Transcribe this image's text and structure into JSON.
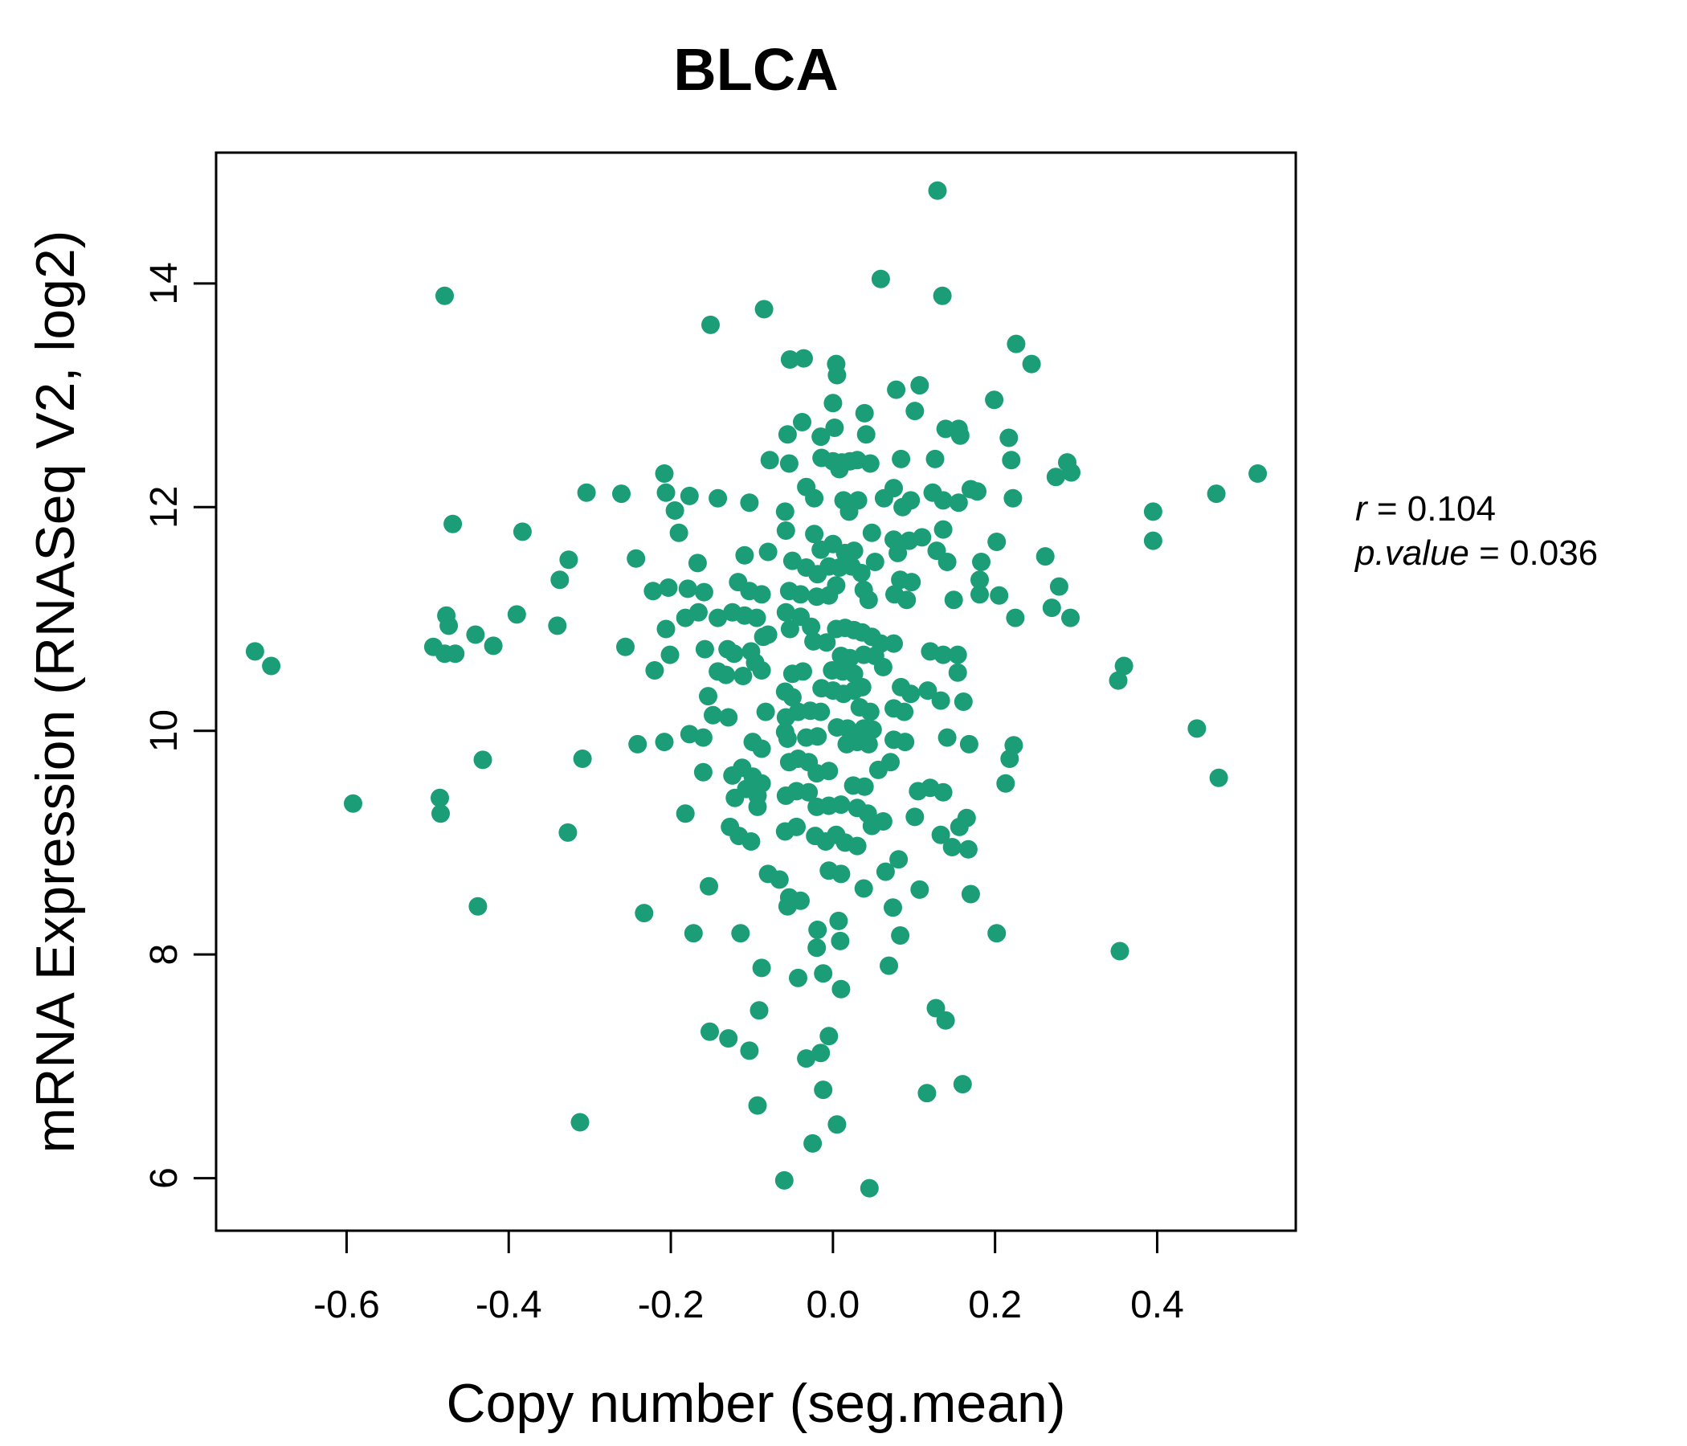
{
  "title": "BLCA",
  "title_color": "#1B9E77",
  "point_color": "#1B9E77",
  "axes": {
    "xlabel": "Copy number (seg.mean)",
    "ylabel": "mRNA Expression (RNASeq V2, log2)",
    "x_tick_labels": [
      "-0.6",
      "-0.4",
      "-0.2",
      "0.0",
      "0.2",
      "0.4"
    ],
    "y_tick_labels": [
      "6",
      "8",
      "10",
      "12",
      "14"
    ]
  },
  "annotation": {
    "r_var": "r",
    "r_eq": " = 0.104",
    "p_var": "p.value",
    "p_eq": " = 0.036"
  },
  "chart_data": {
    "type": "scatter",
    "title": "BLCA",
    "xlabel": "Copy number (seg.mean)",
    "ylabel": "mRNA Expression (RNASeq V2, log2)",
    "r": 0.104,
    "p_value": 0.036,
    "xlim": [
      -0.761,
      0.571
    ],
    "ylim": [
      5.53,
      15.17
    ],
    "x_ticks": [
      -0.6,
      -0.4,
      -0.2,
      0.0,
      0.2,
      0.4
    ],
    "y_ticks": [
      6,
      8,
      10,
      12,
      14
    ],
    "grid": false,
    "legend": "none",
    "points": [
      [
        -0.479,
        13.89
      ],
      [
        -0.469,
        11.85
      ],
      [
        -0.304,
        12.13
      ],
      [
        0.129,
        14.83
      ],
      [
        0.059,
        14.04
      ],
      [
        0.135,
        13.89
      ],
      [
        -0.085,
        13.77
      ],
      [
        -0.151,
        13.63
      ],
      [
        -0.053,
        13.32
      ],
      [
        -0.036,
        13.33
      ],
      [
        0.004,
        13.28
      ],
      [
        0.005,
        13.18
      ],
      [
        0.078,
        13.05
      ],
      [
        0.107,
        13.09
      ],
      [
        0.0,
        12.93
      ],
      [
        -0.038,
        12.76
      ],
      [
        -0.056,
        12.65
      ],
      [
        -0.015,
        12.63
      ],
      [
        0.002,
        12.71
      ],
      [
        0.039,
        12.84
      ],
      [
        0.041,
        12.65
      ],
      [
        0.101,
        12.86
      ],
      [
        0.139,
        12.7
      ],
      [
        -0.078,
        12.42
      ],
      [
        -0.054,
        12.39
      ],
      [
        -0.014,
        12.44
      ],
      [
        0.0,
        12.41
      ],
      [
        0.011,
        12.4
      ],
      [
        0.021,
        12.41
      ],
      [
        0.03,
        12.42
      ],
      [
        0.008,
        12.34
      ],
      [
        0.046,
        12.39
      ],
      [
        0.084,
        12.43
      ],
      [
        0.126,
        12.43
      ],
      [
        -0.208,
        12.3
      ],
      [
        -0.261,
        12.12
      ],
      [
        -0.206,
        12.13
      ],
      [
        -0.195,
        11.97
      ],
      [
        -0.177,
        12.1
      ],
      [
        -0.142,
        12.08
      ],
      [
        -0.103,
        12.04
      ],
      [
        -0.059,
        11.96
      ],
      [
        -0.033,
        12.18
      ],
      [
        -0.023,
        12.08
      ],
      [
        0.013,
        12.06
      ],
      [
        0.02,
        11.96
      ],
      [
        0.031,
        12.06
      ],
      [
        0.063,
        12.08
      ],
      [
        0.075,
        12.17
      ],
      [
        0.086,
        12.0
      ],
      [
        0.096,
        12.06
      ],
      [
        0.123,
        12.13
      ],
      [
        0.136,
        12.06
      ],
      [
        0.226,
        13.46
      ],
      [
        0.245,
        13.28
      ],
      [
        0.199,
        12.96
      ],
      [
        0.155,
        12.7
      ],
      [
        0.157,
        12.64
      ],
      [
        0.217,
        12.62
      ],
      [
        0.22,
        12.42
      ],
      [
        0.289,
        12.4
      ],
      [
        0.275,
        12.27
      ],
      [
        0.294,
        12.31
      ],
      [
        0.17,
        12.16
      ],
      [
        0.178,
        12.14
      ],
      [
        0.222,
        12.08
      ],
      [
        0.155,
        12.04
      ],
      [
        0.395,
        11.96
      ],
      [
        0.473,
        12.12
      ],
      [
        0.524,
        12.3
      ],
      [
        -0.383,
        11.78
      ],
      [
        -0.326,
        11.53
      ],
      [
        -0.337,
        11.35
      ],
      [
        -0.477,
        11.03
      ],
      [
        -0.474,
        10.94
      ],
      [
        -0.441,
        10.86
      ],
      [
        -0.419,
        10.76
      ],
      [
        -0.39,
        11.04
      ],
      [
        -0.34,
        10.94
      ],
      [
        -0.493,
        10.75
      ],
      [
        -0.479,
        10.69
      ],
      [
        -0.466,
        10.69
      ],
      [
        -0.713,
        10.71
      ],
      [
        -0.693,
        10.58
      ],
      [
        -0.432,
        9.74
      ],
      [
        -0.309,
        9.75
      ],
      [
        -0.592,
        9.35
      ],
      [
        -0.485,
        9.4
      ],
      [
        -0.484,
        9.26
      ],
      [
        -0.327,
        9.09
      ],
      [
        -0.438,
        8.43
      ],
      [
        -0.19,
        11.77
      ],
      [
        0.048,
        11.77
      ],
      [
        -0.058,
        11.79
      ],
      [
        -0.023,
        11.76
      ],
      [
        0.075,
        11.71
      ],
      [
        0.11,
        11.73
      ],
      [
        0.136,
        11.8
      ],
      [
        0.128,
        11.61
      ],
      [
        0.08,
        11.59
      ],
      [
        0.094,
        11.7
      ],
      [
        -0.015,
        11.62
      ],
      [
        0.0,
        11.67
      ],
      [
        0.015,
        11.59
      ],
      [
        0.026,
        11.61
      ],
      [
        -0.109,
        11.57
      ],
      [
        -0.08,
        11.6
      ],
      [
        -0.243,
        11.54
      ],
      [
        -0.167,
        11.5
      ],
      [
        -0.05,
        11.52
      ],
      [
        -0.033,
        11.46
      ],
      [
        -0.019,
        11.4
      ],
      [
        -0.005,
        11.47
      ],
      [
        0.008,
        11.46
      ],
      [
        0.023,
        11.47
      ],
      [
        0.035,
        11.41
      ],
      [
        0.052,
        11.51
      ],
      [
        0.083,
        11.35
      ],
      [
        0.097,
        11.33
      ],
      [
        0.141,
        11.51
      ],
      [
        -0.222,
        11.25
      ],
      [
        -0.203,
        11.28
      ],
      [
        -0.179,
        11.27
      ],
      [
        -0.159,
        11.24
      ],
      [
        -0.117,
        11.33
      ],
      [
        -0.103,
        11.25
      ],
      [
        -0.088,
        11.22
      ],
      [
        -0.054,
        11.25
      ],
      [
        -0.04,
        11.22
      ],
      [
        -0.02,
        11.2
      ],
      [
        -0.005,
        11.21
      ],
      [
        0.004,
        11.3
      ],
      [
        0.038,
        11.26
      ],
      [
        0.044,
        11.17
      ],
      [
        0.076,
        11.22
      ],
      [
        0.091,
        11.17
      ],
      [
        0.149,
        11.17
      ],
      [
        -0.182,
        11.01
      ],
      [
        -0.166,
        11.06
      ],
      [
        -0.142,
        11.01
      ],
      [
        -0.124,
        11.06
      ],
      [
        -0.109,
        11.03
      ],
      [
        -0.094,
        11.01
      ],
      [
        -0.206,
        10.91
      ],
      [
        -0.201,
        10.68
      ],
      [
        -0.256,
        10.75
      ],
      [
        -0.22,
        10.54
      ],
      [
        -0.158,
        10.73
      ],
      [
        -0.13,
        10.73
      ],
      [
        -0.122,
        10.69
      ],
      [
        -0.101,
        10.71
      ],
      [
        -0.086,
        10.84
      ],
      [
        -0.08,
        10.86
      ],
      [
        -0.058,
        11.06
      ],
      [
        -0.053,
        10.91
      ],
      [
        -0.04,
        11.02
      ],
      [
        -0.027,
        10.93
      ],
      [
        -0.024,
        10.8
      ],
      [
        -0.008,
        10.79
      ],
      [
        0.004,
        10.91
      ],
      [
        0.015,
        10.92
      ],
      [
        0.026,
        10.9
      ],
      [
        0.036,
        10.88
      ],
      [
        0.048,
        10.84
      ],
      [
        0.059,
        10.78
      ],
      [
        0.075,
        10.78
      ],
      [
        0.038,
        10.68
      ],
      [
        0.052,
        10.67
      ],
      [
        0.01,
        10.67
      ],
      [
        0.021,
        10.65
      ],
      [
        -0.001,
        10.54
      ],
      [
        0.012,
        10.53
      ],
      [
        0.026,
        10.51
      ],
      [
        0.062,
        10.57
      ],
      [
        0.084,
        10.39
      ],
      [
        0.096,
        10.33
      ],
      [
        0.12,
        10.71
      ],
      [
        0.136,
        10.68
      ],
      [
        -0.142,
        10.53
      ],
      [
        -0.132,
        10.5
      ],
      [
        -0.111,
        10.49
      ],
      [
        -0.096,
        10.61
      ],
      [
        -0.088,
        10.54
      ],
      [
        -0.05,
        10.51
      ],
      [
        -0.037,
        10.53
      ],
      [
        -0.059,
        10.35
      ],
      [
        -0.05,
        10.3
      ],
      [
        -0.014,
        10.38
      ],
      [
        0.0,
        10.36
      ],
      [
        0.013,
        10.33
      ],
      [
        0.026,
        10.36
      ],
      [
        0.036,
        10.39
      ],
      [
        -0.154,
        10.31
      ],
      [
        -0.148,
        10.14
      ],
      [
        -0.129,
        10.12
      ],
      [
        -0.083,
        10.17
      ],
      [
        -0.058,
        10.12
      ],
      [
        -0.043,
        10.17
      ],
      [
        -0.028,
        10.18
      ],
      [
        -0.015,
        10.17
      ],
      [
        0.033,
        10.21
      ],
      [
        0.046,
        10.17
      ],
      [
        0.005,
        10.03
      ],
      [
        0.018,
        10.02
      ],
      [
        0.038,
        10.02
      ],
      [
        0.049,
        10.01
      ],
      [
        0.075,
        10.2
      ],
      [
        0.088,
        10.17
      ],
      [
        0.117,
        10.36
      ],
      [
        0.133,
        10.27
      ],
      [
        -0.241,
        9.88
      ],
      [
        -0.208,
        9.9
      ],
      [
        -0.177,
        9.97
      ],
      [
        -0.16,
        9.94
      ],
      [
        -0.099,
        9.9
      ],
      [
        -0.088,
        9.84
      ],
      [
        -0.059,
        9.99
      ],
      [
        -0.056,
        9.93
      ],
      [
        -0.033,
        9.94
      ],
      [
        -0.019,
        9.95
      ],
      [
        0.017,
        9.88
      ],
      [
        0.03,
        9.9
      ],
      [
        0.044,
        9.88
      ],
      [
        0.075,
        9.92
      ],
      [
        0.089,
        9.9
      ],
      [
        0.141,
        9.94
      ],
      [
        -0.16,
        9.63
      ],
      [
        -0.124,
        9.6
      ],
      [
        -0.112,
        9.67
      ],
      [
        -0.099,
        9.59
      ],
      [
        -0.088,
        9.53
      ],
      [
        -0.054,
        9.72
      ],
      [
        -0.043,
        9.75
      ],
      [
        -0.03,
        9.72
      ],
      [
        -0.02,
        9.62
      ],
      [
        -0.005,
        9.64
      ],
      [
        0.056,
        9.65
      ],
      [
        0.071,
        9.72
      ],
      [
        0.105,
        9.46
      ],
      [
        0.12,
        9.49
      ],
      [
        0.136,
        9.45
      ],
      [
        -0.121,
        9.4
      ],
      [
        -0.107,
        9.48
      ],
      [
        -0.093,
        9.42
      ],
      [
        -0.093,
        9.32
      ],
      [
        -0.058,
        9.42
      ],
      [
        -0.045,
        9.46
      ],
      [
        -0.03,
        9.45
      ],
      [
        -0.02,
        9.32
      ],
      [
        -0.005,
        9.33
      ],
      [
        0.01,
        9.34
      ],
      [
        0.025,
        9.51
      ],
      [
        0.039,
        9.5
      ],
      [
        0.03,
        9.31
      ],
      [
        0.043,
        9.26
      ],
      [
        -0.182,
        9.26
      ],
      [
        -0.127,
        9.14
      ],
      [
        -0.116,
        9.06
      ],
      [
        -0.101,
        9.01
      ],
      [
        -0.059,
        9.1
      ],
      [
        -0.045,
        9.14
      ],
      [
        -0.022,
        9.06
      ],
      [
        -0.009,
        9.01
      ],
      [
        0.004,
        9.07
      ],
      [
        0.015,
        9.0
      ],
      [
        0.03,
        8.97
      ],
      [
        0.048,
        9.15
      ],
      [
        0.062,
        9.19
      ],
      [
        0.101,
        9.23
      ],
      [
        0.133,
        9.07
      ],
      [
        0.147,
        8.96
      ],
      [
        -0.005,
        8.75
      ],
      [
        0.01,
        8.72
      ],
      [
        0.065,
        8.74
      ],
      [
        -0.08,
        8.72
      ],
      [
        -0.066,
        8.67
      ],
      [
        -0.054,
        8.51
      ],
      [
        -0.04,
        8.48
      ],
      [
        0.038,
        8.59
      ],
      [
        0.081,
        8.85
      ],
      [
        0.107,
        8.58
      ],
      [
        -0.153,
        8.61
      ],
      [
        0.202,
        11.69
      ],
      [
        0.395,
        11.7
      ],
      [
        0.262,
        11.56
      ],
      [
        0.183,
        11.51
      ],
      [
        0.181,
        11.35
      ],
      [
        0.181,
        11.22
      ],
      [
        0.205,
        11.21
      ],
      [
        0.279,
        11.29
      ],
      [
        0.27,
        11.1
      ],
      [
        0.293,
        11.01
      ],
      [
        0.225,
        11.01
      ],
      [
        0.154,
        10.68
      ],
      [
        0.154,
        10.52
      ],
      [
        0.161,
        10.26
      ],
      [
        0.359,
        10.58
      ],
      [
        0.352,
        10.45
      ],
      [
        0.449,
        10.02
      ],
      [
        0.168,
        9.88
      ],
      [
        0.223,
        9.87
      ],
      [
        0.218,
        9.75
      ],
      [
        0.213,
        9.53
      ],
      [
        0.476,
        9.58
      ],
      [
        0.165,
        9.22
      ],
      [
        0.156,
        9.14
      ],
      [
        0.167,
        8.94
      ],
      [
        0.17,
        8.54
      ],
      [
        -0.233,
        8.37
      ],
      [
        -0.172,
        8.19
      ],
      [
        -0.114,
        8.19
      ],
      [
        -0.056,
        8.43
      ],
      [
        -0.019,
        8.22
      ],
      [
        -0.02,
        8.06
      ],
      [
        0.007,
        8.3
      ],
      [
        0.009,
        8.12
      ],
      [
        0.074,
        8.42
      ],
      [
        0.083,
        8.17
      ],
      [
        -0.088,
        7.88
      ],
      [
        -0.043,
        7.79
      ],
      [
        -0.012,
        7.83
      ],
      [
        0.01,
        7.69
      ],
      [
        0.069,
        7.9
      ],
      [
        0.127,
        7.52
      ],
      [
        0.139,
        7.41
      ],
      [
        -0.091,
        7.5
      ],
      [
        -0.152,
        7.31
      ],
      [
        -0.129,
        7.25
      ],
      [
        -0.103,
        7.14
      ],
      [
        -0.005,
        7.27
      ],
      [
        -0.033,
        7.07
      ],
      [
        -0.015,
        7.12
      ],
      [
        -0.012,
        6.79
      ],
      [
        -0.093,
        6.65
      ],
      [
        0.005,
        6.48
      ],
      [
        -0.025,
        6.31
      ],
      [
        0.116,
        6.76
      ],
      [
        -0.06,
        5.98
      ],
      [
        0.045,
        5.91
      ],
      [
        -0.312,
        6.5
      ],
      [
        0.202,
        8.19
      ],
      [
        0.354,
        8.03
      ],
      [
        0.16,
        6.84
      ]
    ]
  }
}
